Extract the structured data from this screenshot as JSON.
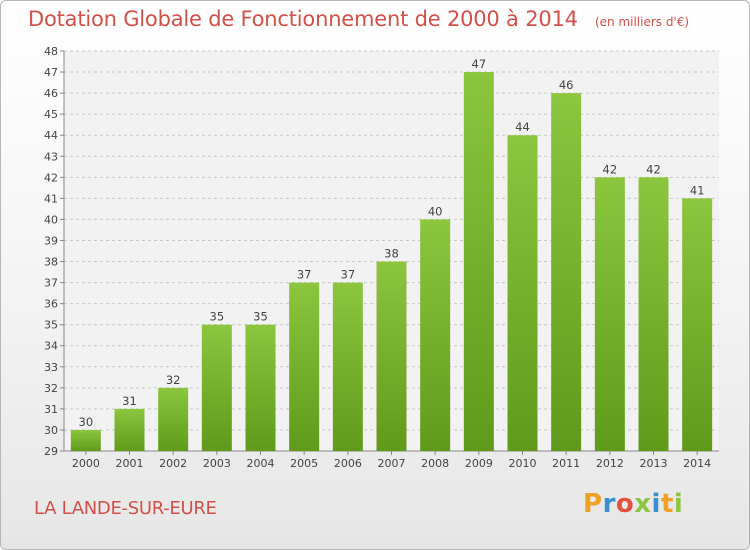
{
  "chart_data": {
    "type": "bar",
    "title": "Dotation Globale de Fonctionnement de 2000 à 2014",
    "subtitle": "(en milliers d'€)",
    "xlabel": "",
    "ylabel": "",
    "categories": [
      "2000",
      "2001",
      "2002",
      "2003",
      "2004",
      "2005",
      "2006",
      "2007",
      "2008",
      "2009",
      "2010",
      "2011",
      "2012",
      "2013",
      "2014"
    ],
    "values": [
      30,
      31,
      32,
      35,
      35,
      37,
      37,
      38,
      40,
      47,
      44,
      46,
      42,
      42,
      41
    ],
    "ylim": [
      29,
      48
    ],
    "yticks": [
      29,
      30,
      31,
      32,
      33,
      34,
      35,
      36,
      37,
      38,
      39,
      40,
      41,
      42,
      43,
      44,
      45,
      46,
      47,
      48
    ],
    "grid": "horizontal dashed",
    "bar_color": "#8cc63f",
    "bar_color_dark": "#5f9a1a"
  },
  "footer": {
    "commune": "LA LANDE-SUR-EURE",
    "logo": "Proxiti"
  },
  "colors": {
    "title": "#d2504a"
  }
}
